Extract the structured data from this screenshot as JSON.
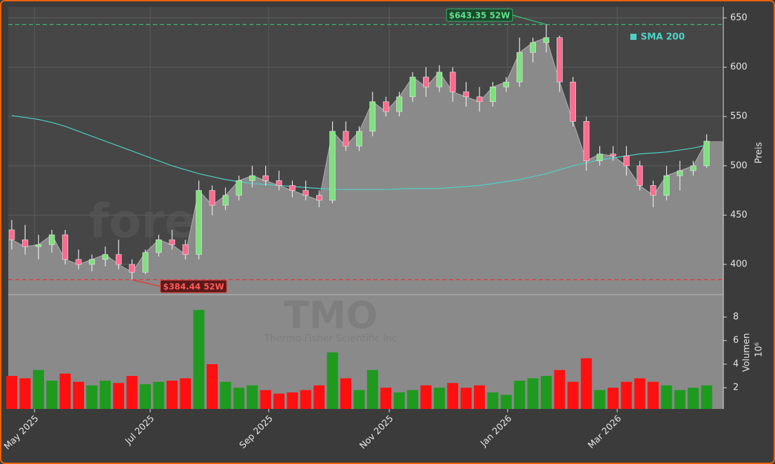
{
  "chart_data": [
    {
      "type": "candlestick",
      "ylabel": "Preis",
      "watermark": "forexsignale.trade",
      "up_color": "#7fe07f",
      "down_color": "#ff6b8f",
      "wick_color": "#e8e8e8",
      "categories": [
        null,
        null,
        null,
        null,
        null,
        null,
        null,
        null,
        null,
        null,
        null,
        null,
        null,
        null,
        null,
        null,
        null,
        null,
        null,
        null,
        null,
        null,
        null,
        null,
        null,
        null,
        null,
        null,
        null,
        null,
        null,
        null,
        null,
        null,
        null,
        null,
        null,
        null,
        null,
        null,
        null,
        null,
        null,
        null,
        null,
        null,
        null,
        null,
        null,
        null,
        null,
        null,
        null
      ],
      "open": [
        435,
        425,
        418,
        420,
        430,
        405,
        400,
        405,
        410,
        400,
        392,
        412,
        425,
        420,
        410,
        475,
        460,
        470,
        485,
        490,
        485,
        480,
        475,
        470,
        465,
        535,
        520,
        535,
        565,
        555,
        570,
        590,
        580,
        595,
        575,
        570,
        565,
        580,
        585,
        615,
        625,
        630,
        585,
        545,
        505,
        512,
        510,
        500,
        480,
        470,
        490,
        495,
        500
      ],
      "high": [
        445,
        440,
        430,
        435,
        435,
        415,
        410,
        418,
        425,
        405,
        415,
        430,
        435,
        425,
        485,
        480,
        478,
        490,
        500,
        500,
        495,
        485,
        485,
        475,
        545,
        545,
        540,
        575,
        570,
        575,
        595,
        600,
        602,
        600,
        585,
        580,
        585,
        590,
        630,
        630,
        643.35,
        632,
        590,
        550,
        520,
        520,
        520,
        505,
        485,
        500,
        505,
        505,
        532
      ],
      "low": [
        415,
        410,
        405,
        412,
        400,
        395,
        393,
        398,
        395,
        384.44,
        390,
        408,
        415,
        405,
        405,
        450,
        455,
        465,
        478,
        480,
        475,
        468,
        465,
        458,
        462,
        515,
        515,
        530,
        550,
        550,
        565,
        570,
        575,
        565,
        560,
        555,
        560,
        575,
        580,
        605,
        615,
        575,
        540,
        495,
        500,
        505,
        490,
        475,
        458,
        465,
        475,
        490,
        498
      ],
      "close": [
        425,
        418,
        420,
        430,
        405,
        400,
        405,
        410,
        400,
        392,
        412,
        425,
        420,
        410,
        475,
        460,
        470,
        485,
        490,
        485,
        480,
        475,
        470,
        465,
        535,
        520,
        535,
        565,
        555,
        570,
        590,
        580,
        595,
        575,
        570,
        565,
        580,
        585,
        615,
        625,
        630,
        585,
        545,
        505,
        512,
        510,
        500,
        480,
        470,
        490,
        495,
        500,
        525
      ],
      "series": [
        {
          "name": "SMA 200",
          "color": "#4fd1c5",
          "values": [
            551,
            549,
            547,
            544,
            540,
            535,
            530,
            525,
            520,
            515,
            510,
            505,
            500,
            496,
            492,
            489,
            486,
            484,
            482,
            481,
            480,
            479,
            478,
            477,
            476,
            476,
            476,
            476,
            476,
            476.5,
            477,
            477,
            477,
            478,
            479,
            480,
            482,
            484,
            486,
            489,
            492,
            496,
            500,
            503,
            506,
            508,
            510,
            512,
            513,
            514,
            516,
            518,
            521
          ]
        }
      ],
      "annotations": [
        {
          "text": "$643.35 52W",
          "value": 643.35,
          "color": "#3cb371"
        },
        {
          "text": "$384.44 52W",
          "value": 384.44,
          "color": "#e03c3c"
        }
      ],
      "xlim": [
        -0.26,
        53.25
      ],
      "xticks": [
        {
          "value": 1.7,
          "label": "May 2025"
        },
        {
          "value": 10.36,
          "label": "Jul 2025"
        },
        {
          "value": 19.23,
          "label": "Sep 2025"
        },
        {
          "value": 28.25,
          "label": "Nov 2025"
        },
        {
          "value": 37.11,
          "label": "Jan 2026"
        },
        {
          "value": 45.31,
          "label": "Mar 2026"
        }
      ],
      "ylim": [
        369.3,
        661.2
      ],
      "yticks": [
        400,
        450,
        500,
        550,
        600,
        650
      ],
      "grid": true
    },
    {
      "type": "bar",
      "ylabel": "Volumen",
      "scale_label": "10⁶",
      "watermark": [
        "TMO",
        "Thermo Fisher Scientific Inc"
      ],
      "categories": [
        null,
        null,
        null,
        null,
        null,
        null,
        null,
        null,
        null,
        null,
        null,
        null,
        null,
        null,
        null,
        null,
        null,
        null,
        null,
        null,
        null,
        null,
        null,
        null,
        null,
        null,
        null,
        null,
        null,
        null,
        null,
        null,
        null,
        null,
        null,
        null,
        null,
        null,
        null,
        null,
        null,
        null,
        null,
        null,
        null,
        null,
        null,
        null,
        null,
        null,
        null,
        null,
        null
      ],
      "values": [
        3.0,
        2.8,
        3.5,
        2.6,
        3.2,
        2.5,
        2.2,
        2.6,
        2.4,
        3.0,
        2.3,
        2.5,
        2.6,
        2.8,
        8.6,
        4.0,
        2.5,
        2.0,
        2.2,
        1.8,
        1.5,
        1.6,
        1.8,
        2.2,
        5.0,
        2.8,
        1.8,
        3.5,
        2.0,
        1.6,
        1.8,
        2.2,
        2.0,
        2.4,
        2.0,
        2.2,
        1.6,
        1.4,
        2.6,
        2.8,
        3.0,
        3.5,
        2.5,
        4.5,
        1.8,
        2.0,
        2.5,
        2.8,
        2.5,
        2.2,
        1.8,
        2.0,
        2.2
      ],
      "up_color": "#1e9a1e",
      "down_color": "#ff1010",
      "ylim": [
        0.2,
        9.9
      ],
      "yticks": [
        2,
        4,
        6,
        8
      ]
    }
  ]
}
